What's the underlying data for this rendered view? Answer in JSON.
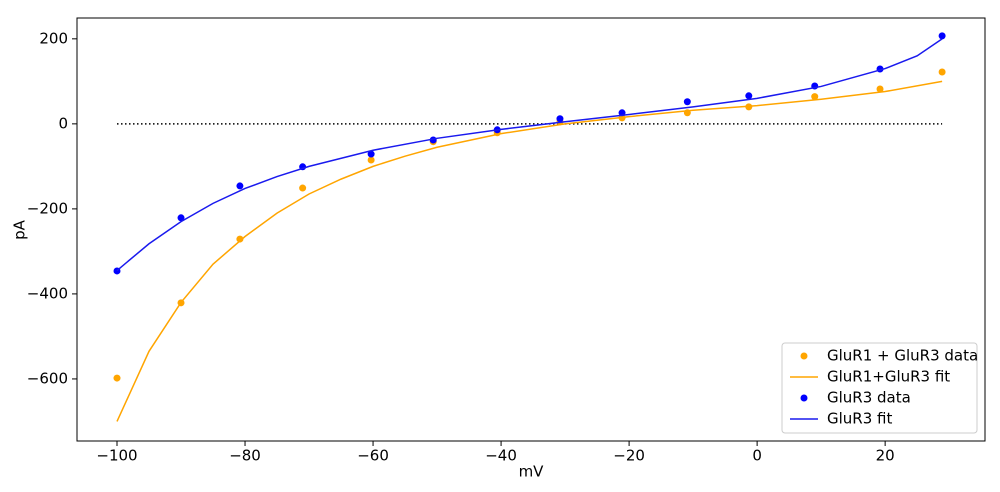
{
  "chart_data": {
    "type": "line",
    "x_label": "mV",
    "y_label": "pA",
    "xlim": [
      -106.25,
      35.6
    ],
    "ylim": [
      -746,
      249
    ],
    "xticks": [
      {
        "value": -100,
        "label": "−100"
      },
      {
        "value": -80,
        "label": "−80"
      },
      {
        "value": -60,
        "label": "−60"
      },
      {
        "value": -40,
        "label": "−40"
      },
      {
        "value": -20,
        "label": "−20"
      },
      0,
      20
    ],
    "yticks": [
      {
        "value": -600,
        "label": "−600"
      },
      {
        "value": -400,
        "label": "−400"
      },
      {
        "value": -200,
        "label": "−200"
      },
      0,
      200
    ],
    "legend": "lower right",
    "reference_line": {
      "y": 0,
      "x": [
        -100,
        28.9
      ]
    },
    "series": [
      {
        "name": "GluR1 + GluR3 data",
        "color": "#ffa500",
        "mode": "markers",
        "x": [
          -100,
          -90,
          -80.8,
          -71,
          -60.3,
          -50.6,
          -40.6,
          -30.8,
          -21.1,
          -10.9,
          -1.3,
          9,
          19.2,
          28.9
        ],
        "values": [
          -598,
          -421,
          -271,
          -151,
          -85,
          -42,
          -21,
          5,
          14,
          26,
          40,
          64,
          82,
          122
        ]
      },
      {
        "name": "GluR1+GluR3 fit",
        "color": "#ffa500",
        "mode": "line",
        "x": [
          -100,
          -95,
          -90,
          -85,
          -80,
          -75,
          -70,
          -65,
          -60,
          -55,
          -50,
          -40,
          -30,
          -20,
          -10,
          0,
          10,
          20,
          28.9
        ],
        "values": [
          -700,
          -535,
          -420,
          -330,
          -265,
          -210,
          -165,
          -130,
          -100,
          -76,
          -55,
          -23,
          0,
          17,
          32,
          43,
          58,
          76,
          100
        ]
      },
      {
        "name": "GluR3 data",
        "color": "#0000ff",
        "mode": "markers",
        "x": [
          -100,
          -90,
          -80.8,
          -71,
          -60.3,
          -50.6,
          -40.6,
          -30.8,
          -21.1,
          -10.9,
          -1.3,
          9,
          19.2,
          28.9
        ],
        "values": [
          -346,
          -221,
          -146,
          -101,
          -71,
          -38,
          -14,
          12,
          26,
          52,
          66,
          89,
          129,
          207
        ]
      },
      {
        "name": "GluR3 fit",
        "color": "#1a1aee",
        "mode": "line",
        "x": [
          -100,
          -95,
          -90,
          -85,
          -80,
          -75,
          -70,
          -60,
          -50,
          -40,
          -30,
          -20,
          -10,
          0,
          10,
          20,
          25,
          28.9
        ],
        "values": [
          -345,
          -282,
          -230,
          -187,
          -152,
          -124,
          -100,
          -62,
          -34,
          -13,
          5,
          22,
          40,
          60,
          88,
          130,
          160,
          200
        ]
      }
    ]
  }
}
